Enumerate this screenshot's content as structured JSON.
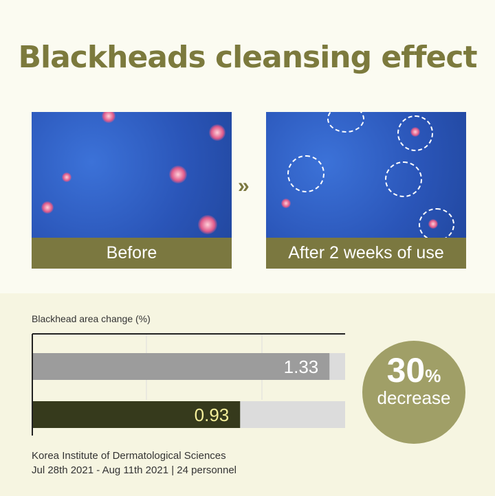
{
  "title": "Blackheads cleansing effect",
  "photos": {
    "before": "Before",
    "after": "After 2 weeks of use",
    "arrow_icon": "double-chevron-right"
  },
  "chart_data": {
    "type": "bar",
    "orientation": "horizontal",
    "ylabel": "Blackhead area change (%)",
    "xlim": [
      0,
      1.4
    ],
    "grid": true,
    "series": [
      {
        "values": [
          1.33,
          0.93
        ],
        "labels": [
          "1.33",
          "0.93"
        ],
        "colors": [
          "#9c9c9c",
          "#363a1c"
        ]
      }
    ]
  },
  "badge": {
    "value": "30",
    "unit": "%",
    "text": "decrease",
    "color": "#a09f67"
  },
  "source": {
    "line1": "Korea Institute of Dermatological Sciences",
    "line2": "Jul 28th 2021 - Aug 11th 2021 | 24 personnel"
  }
}
